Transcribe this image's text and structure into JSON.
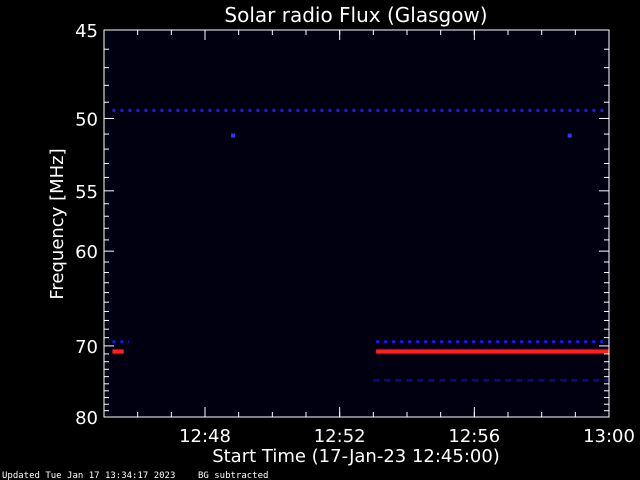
{
  "chart_data": {
    "type": "heatmap",
    "title": "Solar radio Flux (Glasgow)",
    "xlabel": "Start Time (17-Jan-23 12:45:00)",
    "ylabel": "Frequency [MHz]",
    "xlim": [
      "12:45:00",
      "13:00:00"
    ],
    "ylim": [
      45,
      80
    ],
    "x_ticks": [
      "12:48",
      "12:52",
      "12:56",
      "13:00"
    ],
    "y_ticks": [
      45,
      50,
      55,
      60,
      70,
      80
    ],
    "background_color": "#000010",
    "features": [
      {
        "kind": "band",
        "frequency_mhz": 49.5,
        "start": "12:45:15",
        "end": "13:00:00",
        "level": "low",
        "color": "#1a1aff"
      },
      {
        "kind": "band",
        "frequency_mhz": 69.5,
        "start": "12:45:15",
        "end": "12:45:45",
        "level": "low",
        "color": "#1a1aff"
      },
      {
        "kind": "band",
        "frequency_mhz": 70.7,
        "start": "12:45:15",
        "end": "12:45:35",
        "level": "high",
        "color": "#ff2020"
      },
      {
        "kind": "band",
        "frequency_mhz": 69.5,
        "start": "12:53:05",
        "end": "13:00:00",
        "level": "low",
        "color": "#1a1aff"
      },
      {
        "kind": "band",
        "frequency_mhz": 70.7,
        "start": "12:53:05",
        "end": "13:00:00",
        "level": "high",
        "color": "#ff2020"
      },
      {
        "kind": "band",
        "frequency_mhz": 74.5,
        "start": "12:53:00",
        "end": "13:00:00",
        "level": "faint",
        "color": "#0c0c70"
      },
      {
        "kind": "spot",
        "frequency_mhz": 51.1,
        "time": "12:48:50",
        "level": "low",
        "color": "#3333ff"
      },
      {
        "kind": "spot",
        "frequency_mhz": 51.1,
        "time": "12:58:50",
        "level": "low",
        "color": "#3333ff"
      }
    ]
  },
  "footer": {
    "updated": "Updated Tue Jan 17 13:34:17 2023",
    "note": "BG subtracted"
  }
}
